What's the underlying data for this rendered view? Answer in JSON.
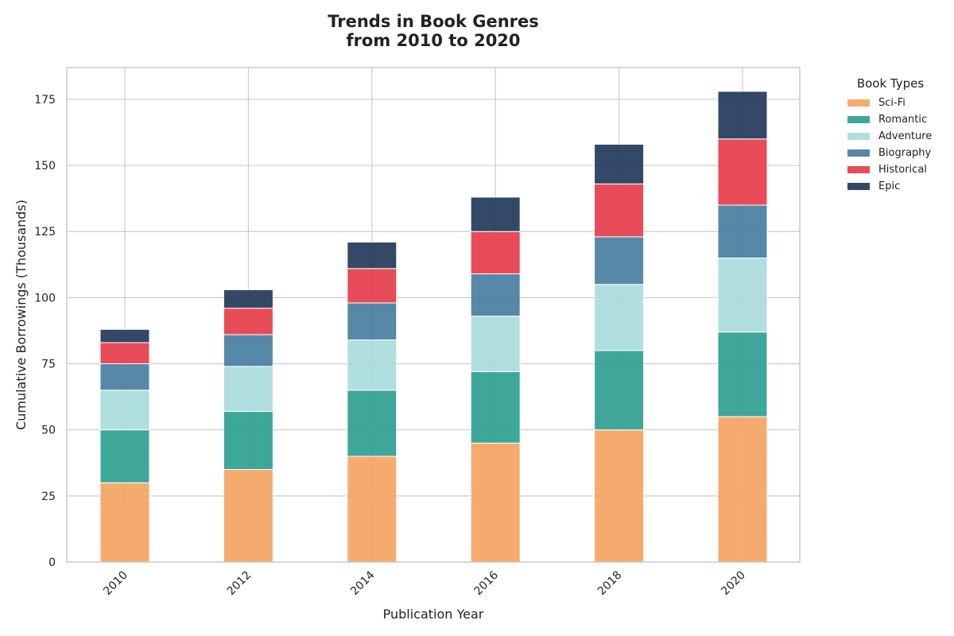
{
  "chart_data": {
    "type": "bar",
    "stacked": true,
    "title": "Trends in Book Genres\nfrom 2010 to 2020",
    "xlabel": "Publication Year",
    "ylabel": "Cumulative Borrowings (Thousands)",
    "ylim": [
      0,
      187
    ],
    "yticks": [
      0,
      25,
      50,
      75,
      100,
      125,
      150,
      175
    ],
    "grid": true,
    "legend_title": "Book Types",
    "legend_position": "outside-top-right",
    "categories": [
      "2010",
      "2012",
      "2014",
      "2016",
      "2018",
      "2020"
    ],
    "series": [
      {
        "name": "Sci-Fi",
        "color": "#F4A261",
        "values": [
          30,
          35,
          40,
          45,
          50,
          55
        ]
      },
      {
        "name": "Romantic",
        "color": "#2A9D8F",
        "values": [
          20,
          22,
          25,
          27,
          30,
          32
        ]
      },
      {
        "name": "Adventure",
        "color": "#A8DADC",
        "values": [
          15,
          17,
          19,
          21,
          25,
          28
        ]
      },
      {
        "name": "Biography",
        "color": "#457B9D",
        "values": [
          10,
          12,
          14,
          16,
          18,
          20
        ]
      },
      {
        "name": "Historical",
        "color": "#E63946",
        "values": [
          8,
          10,
          13,
          16,
          20,
          25
        ]
      },
      {
        "name": "Epic",
        "color": "#1D3557",
        "values": [
          5,
          7,
          10,
          13,
          15,
          18
        ]
      }
    ]
  }
}
